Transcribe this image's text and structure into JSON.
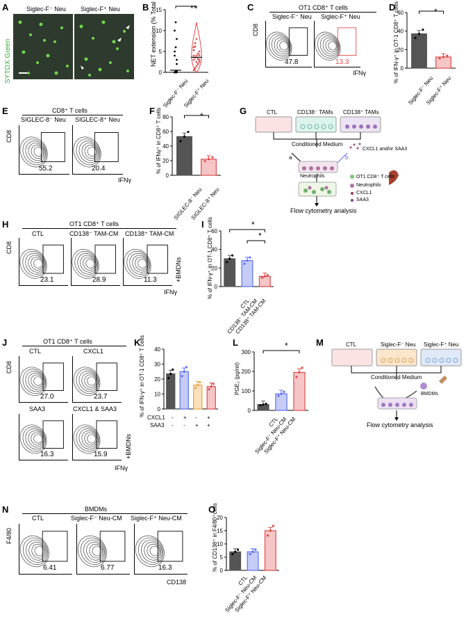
{
  "panels": {
    "A": {
      "label": "A",
      "ylabel": "SYTOX Green",
      "titles": [
        "Siglec-F⁻ Neu",
        "Siglec-F⁺ Neu"
      ]
    },
    "B": {
      "label": "B",
      "sig": "**"
    },
    "C": {
      "label": "C",
      "group_title": "OT1 CD8⁺ T cells",
      "titles": [
        "Siglec-F⁻ Neu",
        "Siglec-F⁺ Neu"
      ],
      "y_axis": "CD8",
      "x_axis": "IFNγ",
      "values": [
        "47.8",
        "13.3"
      ]
    },
    "D": {
      "label": "D",
      "sig": "*"
    },
    "E": {
      "label": "E",
      "group_title": "CD8⁺ T cells",
      "titles": [
        "SIGLEC-8⁻ Neu",
        "SIGLEC-8⁺ Neu"
      ],
      "y_axis": "CD8",
      "x_axis": "IFNγ",
      "values": [
        "55.2",
        "20.4"
      ]
    },
    "F": {
      "label": "F",
      "sig": "*"
    },
    "G": {
      "label": "G",
      "dishes": [
        "CTL",
        "CD138⁻ TAMs",
        "CD138⁺ TAMs"
      ],
      "conditioned": "Conditioned Medium",
      "arrow_a": "a",
      "arrow_b": "b",
      "addition": "CXCL1 and/or SAA3",
      "neutrophils": "Neutrophils",
      "flow": "Flow cytometry analysis",
      "legend": [
        "OT1 CD8⁺ T cells",
        "Neutrophils",
        "CXCL1",
        "SAA3"
      ]
    },
    "H": {
      "label": "H",
      "group_title": "OT1 CD8⁺ T cells",
      "titles": [
        "CTL",
        "CD138⁻ TAM-CM",
        "CD138⁺ TAM-CM"
      ],
      "y_axis": "CD8",
      "x_axis": "IFNγ",
      "side": "+BMDNs",
      "values": [
        "23.1",
        "28.9",
        "11.3"
      ]
    },
    "I": {
      "label": "I",
      "sig": [
        "*",
        "*"
      ]
    },
    "J": {
      "label": "J",
      "group_title": "OT1 CD8⁺ T cells",
      "titles": [
        "CTL",
        "CXCL1",
        "SAA3",
        "CXCL1 & SAA3"
      ],
      "y_axis": "CD8",
      "x_axis": "IFNγ",
      "side": "+BMDNs",
      "values": [
        "27.0",
        "23.7",
        "16.3",
        "15.9"
      ]
    },
    "K": {
      "label": "K",
      "row_labels": [
        "CXCL1",
        "SAA3"
      ],
      "cxcl1": [
        "-",
        "+",
        "-",
        "+"
      ],
      "saa3": [
        "-",
        "-",
        "+",
        "+"
      ]
    },
    "L": {
      "label": "L",
      "sig": "*"
    },
    "M": {
      "label": "M",
      "dishes": [
        "CTL",
        "Siglec-F⁻ Neu",
        "Siglec-F⁺ Neu"
      ],
      "conditioned": "Conditioned Medium",
      "bmdms": "BMDMs",
      "flow": "Flow cytometry analysis"
    },
    "N": {
      "label": "N",
      "group_title": "BMDMs",
      "titles": [
        "CTL",
        "Siglec-F⁻ Neu-CM",
        "Siglec-F⁺ Neu-CM"
      ],
      "y_axis": "F4/80",
      "x_axis": "CD138",
      "values": [
        "6.41",
        "6.77",
        "16.3"
      ]
    },
    "O": {
      "label": "O"
    }
  },
  "colors": {
    "red": "#e04a4a",
    "blue": "#5b6ef2",
    "orange": "#f0a040",
    "grey": "#555555",
    "pink_fill": "#f6c6c6",
    "blue_fill": "#c6ccf6"
  },
  "chart_data": [
    {
      "panel": "B",
      "type": "scatter",
      "ylabel": "NET extension (% Total area)",
      "categories": [
        "Siglec-F⁻ Neu",
        "Siglec-F⁺ Neu"
      ],
      "ylim": [
        0,
        15
      ],
      "yticks": [
        "0",
        "5",
        "10",
        "15"
      ],
      "series": [
        {
          "values": [
            0.5,
            3.6
          ]
        }
      ]
    },
    {
      "panel": "D",
      "type": "bar",
      "ylabel": "% of IFN-γ⁺ in OT-1 CD8⁺ T cells",
      "categories": [
        "Siglec-F⁻ Neu",
        "Siglec-F⁺ Neu"
      ],
      "ylim": [
        0,
        60
      ],
      "yticks": [
        "0",
        "20",
        "40",
        "60"
      ],
      "values": [
        37,
        12
      ]
    },
    {
      "panel": "F",
      "type": "bar",
      "ylabel": "% of IFNγ⁺ in CD8⁺ T cells",
      "categories": [
        "SIGLEC-8⁻ Neu",
        "SIGLEC-8⁺ Neu"
      ],
      "ylim": [
        0,
        80
      ],
      "yticks": [
        "0",
        "20",
        "40",
        "60",
        "80"
      ],
      "values": [
        53,
        22
      ]
    },
    {
      "panel": "I",
      "type": "bar",
      "ylabel": "% of IFN-γ⁺ in OT-1 CD8⁺ T cells",
      "categories": [
        "CTL",
        "CD138⁻ TAM-CM",
        "CD138⁺ TAM-CM"
      ],
      "ylim": [
        0,
        60
      ],
      "yticks": [
        "0",
        "20",
        "40",
        "60"
      ],
      "values": [
        30,
        28,
        11
      ]
    },
    {
      "panel": "K",
      "type": "bar",
      "ylabel": "% of IFN-γ⁺ in OT-1 CD8⁺ T cells",
      "categories": [
        "1",
        "2",
        "3",
        "4"
      ],
      "ylim": [
        0,
        40
      ],
      "yticks": [
        "0",
        "10",
        "20",
        "30",
        "40"
      ],
      "values": [
        23.5,
        25,
        16,
        15
      ]
    },
    {
      "panel": "L",
      "type": "bar",
      "ylabel": "PGE₂ (pg/ml)",
      "categories": [
        "CTL",
        "Siglec-F⁻ Neu-CM",
        "Siglec-F⁺ Neu-CM"
      ],
      "ylim": [
        0,
        300
      ],
      "yticks": [
        "0",
        "100",
        "200",
        "300"
      ],
      "values": [
        30,
        85,
        195
      ]
    },
    {
      "panel": "O",
      "type": "bar",
      "ylabel": "% of CD138⁺ in F4/80⁺cells",
      "categories": [
        "CTL",
        "Siglec-F⁻ Neu-CM",
        "Siglec-F⁺ Neu-CM"
      ],
      "ylim": [
        0,
        20
      ],
      "yticks": [
        "0",
        "5",
        "10",
        "15",
        "20"
      ],
      "values": [
        7,
        7,
        15
      ]
    }
  ]
}
